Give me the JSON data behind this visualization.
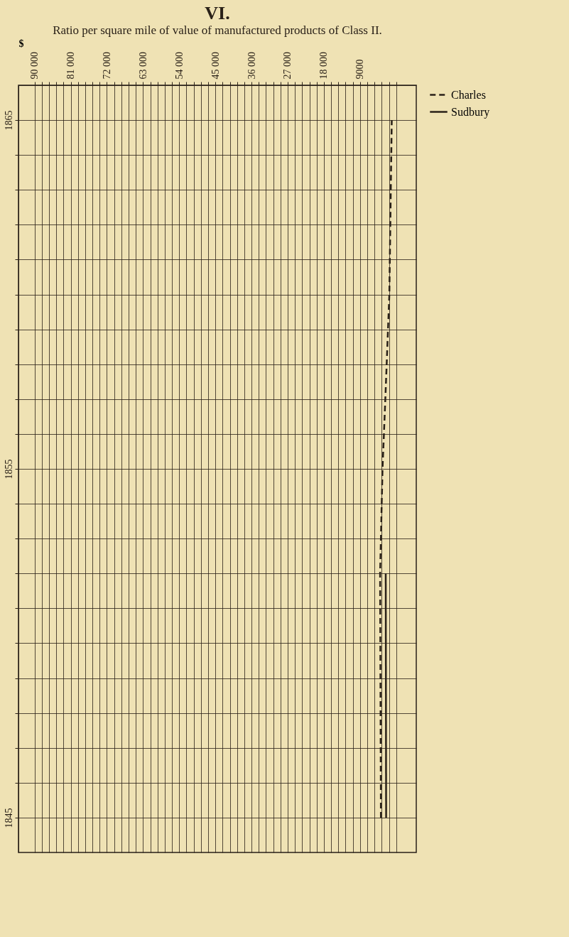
{
  "chart_data": {
    "type": "line",
    "title": "VI.",
    "subtitle": "Ratio per square mile of value of manufactured products of Class II.",
    "xlabel": "$",
    "series": [
      {
        "name": "Charles",
        "color": "#2a2118",
        "line_style": "dashed",
        "x": [
          1845,
          1852,
          1855,
          1857,
          1860,
          1865
        ],
        "values": [
          3800,
          4000,
          3400,
          2700,
          1700,
          1100
        ]
      },
      {
        "name": "Sudbury",
        "color": "#2a2118",
        "line_style": "solid",
        "x": [
          1845,
          1852
        ],
        "values": [
          2500,
          2600
        ]
      }
    ],
    "orientation": "horizontal",
    "xlim": [
      94000,
      -5000
    ],
    "xticks": [
      {
        "value": 0,
        "label": null
      },
      {
        "value": 1800,
        "label": null
      },
      {
        "value": 3600,
        "label": null
      },
      {
        "value": 5400,
        "label": null
      },
      {
        "value": 7200,
        "label": null
      },
      9000,
      {
        "value": 10800,
        "label": null
      },
      {
        "value": 12600,
        "label": null
      },
      {
        "value": 14400,
        "label": null
      },
      {
        "value": 16200,
        "label": null
      },
      {
        "value": 18000,
        "label": "18 000"
      },
      {
        "value": 19800,
        "label": null
      },
      {
        "value": 21600,
        "label": null
      },
      {
        "value": 23400,
        "label": null
      },
      {
        "value": 25200,
        "label": null
      },
      {
        "value": 27000,
        "label": "27 000"
      },
      {
        "value": 28800,
        "label": null
      },
      {
        "value": 30600,
        "label": null
      },
      {
        "value": 32400,
        "label": null
      },
      {
        "value": 34200,
        "label": null
      },
      {
        "value": 36000,
        "label": "36 000"
      },
      {
        "value": 37800,
        "label": null
      },
      {
        "value": 39600,
        "label": null
      },
      {
        "value": 41400,
        "label": null
      },
      {
        "value": 43200,
        "label": null
      },
      {
        "value": 45000,
        "label": "45 000"
      },
      {
        "value": 46800,
        "label": null
      },
      {
        "value": 48600,
        "label": null
      },
      {
        "value": 50400,
        "label": null
      },
      {
        "value": 52200,
        "label": null
      },
      {
        "value": 54000,
        "label": "54 000"
      },
      {
        "value": 55800,
        "label": null
      },
      {
        "value": 57600,
        "label": null
      },
      {
        "value": 59400,
        "label": null
      },
      {
        "value": 61200,
        "label": null
      },
      {
        "value": 63000,
        "label": "63 000"
      },
      {
        "value": 64800,
        "label": null
      },
      {
        "value": 66600,
        "label": null
      },
      {
        "value": 68400,
        "label": null
      },
      {
        "value": 70200,
        "label": null
      },
      {
        "value": 72000,
        "label": "72 000"
      },
      {
        "value": 73800,
        "label": null
      },
      {
        "value": 75600,
        "label": null
      },
      {
        "value": 77400,
        "label": null
      },
      {
        "value": 79200,
        "label": null
      },
      {
        "value": 81000,
        "label": "81 000"
      },
      {
        "value": 82800,
        "label": null
      },
      {
        "value": 84600,
        "label": null
      },
      {
        "value": 86400,
        "label": null
      },
      {
        "value": 88200,
        "label": null
      },
      {
        "value": 90000,
        "label": "90 000"
      }
    ],
    "ylim": [
      1844,
      1866
    ],
    "yticks": [
      1845,
      {
        "value": 1846,
        "label": null
      },
      {
        "value": 1847,
        "label": null
      },
      {
        "value": 1848,
        "label": null
      },
      {
        "value": 1849,
        "label": null
      },
      {
        "value": 1850,
        "label": null
      },
      {
        "value": 1851,
        "label": null
      },
      {
        "value": 1852,
        "label": null
      },
      {
        "value": 1853,
        "label": null
      },
      {
        "value": 1854,
        "label": null
      },
      1855,
      {
        "value": 1856,
        "label": null
      },
      {
        "value": 1857,
        "label": null
      },
      {
        "value": 1858,
        "label": null
      },
      {
        "value": 1859,
        "label": null
      },
      {
        "value": 1860,
        "label": null
      },
      {
        "value": 1861,
        "label": null
      },
      {
        "value": 1862,
        "label": null
      },
      {
        "value": 1863,
        "label": null
      },
      {
        "value": 1864,
        "label": null
      },
      1865
    ],
    "grid": true,
    "legend": "right",
    "marker": "none"
  }
}
